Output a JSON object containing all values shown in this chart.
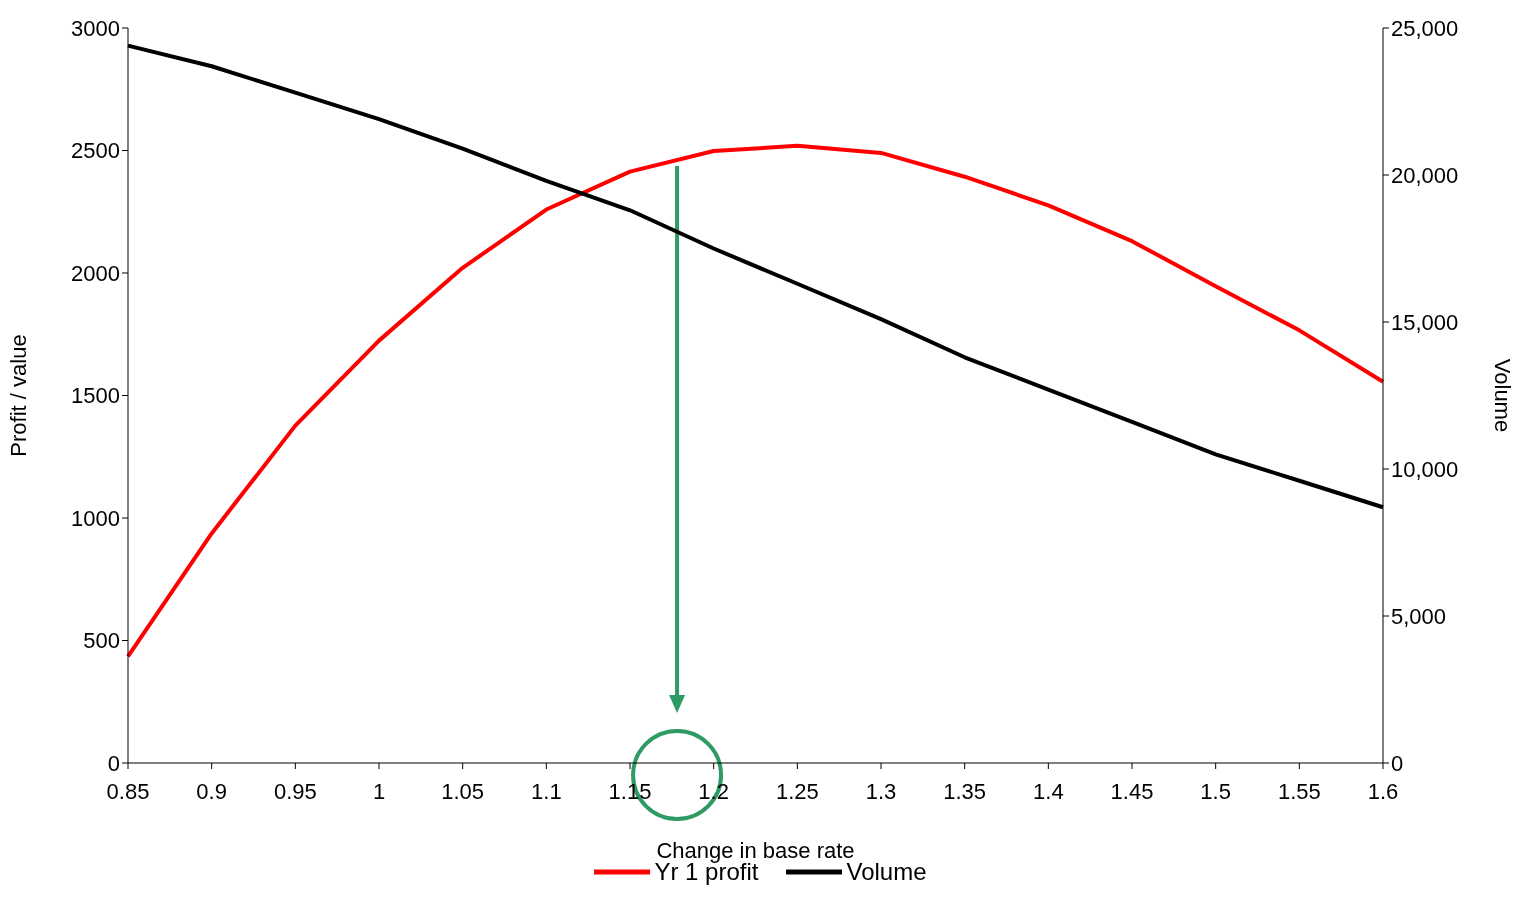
{
  "chart_data": {
    "type": "line",
    "xlabel": "Change in base rate",
    "ylabel": "Profit / value",
    "y2label": "Volume",
    "categories": [
      "0.85",
      "0.9",
      "0.95",
      "1",
      "1.05",
      "1.1",
      "1.15",
      "1.2",
      "1.25",
      "1.3",
      "1.35",
      "1.4",
      "1.45",
      "1.5",
      "1.55",
      "1.6"
    ],
    "series": [
      {
        "name": "Yr 1 profit",
        "color": "#ff0000",
        "values": [
          435,
          937,
          1377,
          1724,
          2021,
          2259,
          2414,
          2498,
          2519,
          2490,
          2393,
          2276,
          2130,
          1946,
          1766,
          1556
        ]
      },
      {
        "name": "Volume",
        "color": "#000000",
        "axis": "y2",
        "values": [
          24400,
          23700,
          22800,
          21900,
          20900,
          19800,
          18800,
          17500,
          16300,
          15100,
          13800,
          12700,
          11600,
          10500,
          9600,
          8700
        ]
      }
    ],
    "ylim": [
      0,
      3000
    ],
    "yticks": [
      0,
      500,
      1000,
      1500,
      2000,
      2500,
      3000
    ],
    "y2lim": [
      0,
      25000
    ],
    "y2ticks": [
      0,
      {
        "value": 5000,
        "label": "5,000"
      },
      {
        "value": 10000,
        "label": "10,000"
      },
      {
        "value": 15000,
        "label": "15,000"
      },
      {
        "value": 20000,
        "label": "20,000"
      },
      {
        "value": 25000,
        "label": "25,000"
      }
    ],
    "grid": false,
    "legend": "bottom",
    "marker": "none",
    "line_style": "solid"
  }
}
